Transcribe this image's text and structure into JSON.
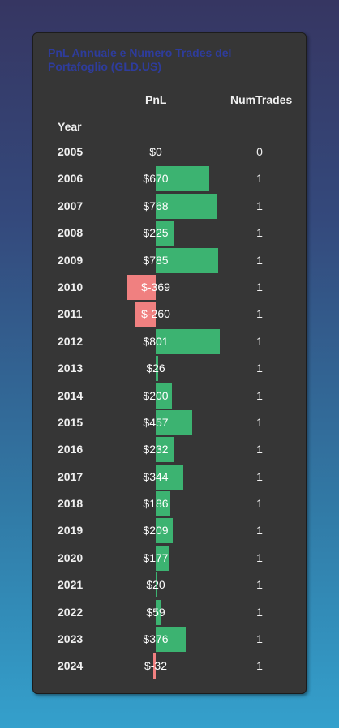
{
  "chart_data": {
    "type": "table",
    "title": "PnL Annuale e Numero Trades del Portafoglio (GLD.US)",
    "columns": [
      "PnL",
      "NumTrades"
    ],
    "index_label": "Year",
    "colors": {
      "positive": "#3cb371",
      "negative": "#f08080",
      "title": "#2e3c9c"
    },
    "rows": [
      {
        "year": "2005",
        "pnl": 0,
        "pnl_label": "$0",
        "trades": "0"
      },
      {
        "year": "2006",
        "pnl": 670,
        "pnl_label": "$670",
        "trades": "1"
      },
      {
        "year": "2007",
        "pnl": 768,
        "pnl_label": "$768",
        "trades": "1"
      },
      {
        "year": "2008",
        "pnl": 225,
        "pnl_label": "$225",
        "trades": "1"
      },
      {
        "year": "2009",
        "pnl": 785,
        "pnl_label": "$785",
        "trades": "1"
      },
      {
        "year": "2010",
        "pnl": -369,
        "pnl_label": "$-369",
        "trades": "1"
      },
      {
        "year": "2011",
        "pnl": -260,
        "pnl_label": "$-260",
        "trades": "1"
      },
      {
        "year": "2012",
        "pnl": 801,
        "pnl_label": "$801",
        "trades": "1"
      },
      {
        "year": "2013",
        "pnl": 26,
        "pnl_label": "$26",
        "trades": "1"
      },
      {
        "year": "2014",
        "pnl": 200,
        "pnl_label": "$200",
        "trades": "1"
      },
      {
        "year": "2015",
        "pnl": 457,
        "pnl_label": "$457",
        "trades": "1"
      },
      {
        "year": "2016",
        "pnl": 232,
        "pnl_label": "$232",
        "trades": "1"
      },
      {
        "year": "2017",
        "pnl": 344,
        "pnl_label": "$344",
        "trades": "1"
      },
      {
        "year": "2018",
        "pnl": 186,
        "pnl_label": "$186",
        "trades": "1"
      },
      {
        "year": "2019",
        "pnl": 209,
        "pnl_label": "$209",
        "trades": "1"
      },
      {
        "year": "2020",
        "pnl": 177,
        "pnl_label": "$177",
        "trades": "1"
      },
      {
        "year": "2021",
        "pnl": 20,
        "pnl_label": "$20",
        "trades": "1"
      },
      {
        "year": "2022",
        "pnl": 59,
        "pnl_label": "$59",
        "trades": "1"
      },
      {
        "year": "2023",
        "pnl": 376,
        "pnl_label": "$376",
        "trades": "1"
      },
      {
        "year": "2024",
        "pnl": -32,
        "pnl_label": "$-32",
        "trades": "1"
      }
    ]
  }
}
